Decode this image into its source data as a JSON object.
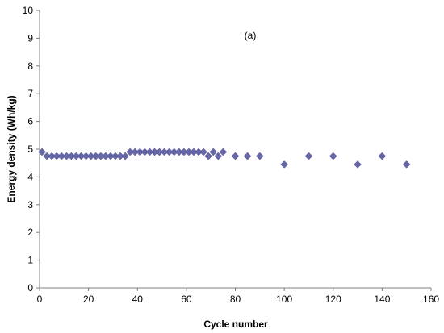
{
  "chart_data": {
    "type": "scatter",
    "title": "",
    "annotation": "(a)",
    "xlabel": "Cycle number",
    "ylabel": "Energy density (Wh/kg)",
    "xlim": [
      0,
      160
    ],
    "ylim": [
      0,
      10
    ],
    "x_ticks": [
      0,
      20,
      40,
      60,
      80,
      100,
      120,
      140,
      160
    ],
    "y_ticks": [
      0,
      1,
      2,
      3,
      4,
      5,
      6,
      7,
      8,
      9,
      10
    ],
    "grid": false,
    "legend": "none",
    "marker": "diamond",
    "marker_color": "#6667a8",
    "series": [
      {
        "x": [
          1,
          3,
          5,
          7,
          9,
          11,
          13,
          15,
          17,
          19,
          21,
          23,
          25,
          27,
          29,
          31,
          33,
          35,
          37,
          39,
          41,
          43,
          45,
          47,
          49,
          51,
          53,
          55,
          57,
          59,
          61,
          63,
          65,
          67,
          69,
          71,
          73,
          75,
          80,
          85,
          90,
          100,
          110,
          120,
          130,
          140,
          150
        ],
        "y": [
          4.9,
          4.75,
          4.75,
          4.75,
          4.75,
          4.75,
          4.75,
          4.75,
          4.75,
          4.75,
          4.75,
          4.75,
          4.75,
          4.75,
          4.75,
          4.75,
          4.75,
          4.75,
          4.9,
          4.9,
          4.9,
          4.9,
          4.9,
          4.9,
          4.9,
          4.9,
          4.9,
          4.9,
          4.9,
          4.9,
          4.9,
          4.9,
          4.9,
          4.9,
          4.75,
          4.9,
          4.75,
          4.9,
          4.75,
          4.75,
          4.75,
          4.45,
          4.75,
          4.75,
          4.45,
          4.75,
          4.45
        ]
      }
    ]
  }
}
